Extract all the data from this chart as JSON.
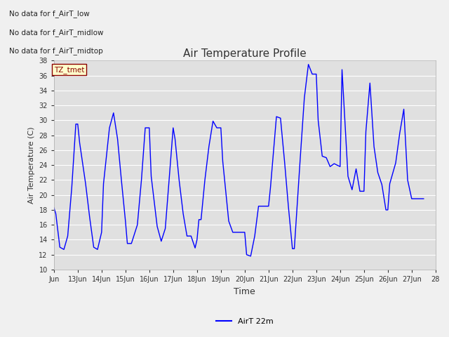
{
  "title": "Air Temperature Profile",
  "xlabel": "Time",
  "ylabel": "Air Temperature (C)",
  "ylim": [
    10,
    38
  ],
  "yticks": [
    10,
    12,
    14,
    16,
    18,
    20,
    22,
    24,
    26,
    28,
    30,
    32,
    34,
    36,
    38
  ],
  "line_color": "blue",
  "line_label": "AirT 22m",
  "fig_bg_color": "#f0f0f0",
  "plot_bg_color": "#e0e0e0",
  "annotations": [
    "No data for f_AirT_low",
    "No data for f_AirT_midlow",
    "No data for f_AirT_midtop"
  ],
  "tz_label": "TZ_tmet",
  "xtick_days": [
    12,
    13,
    14,
    15,
    16,
    17,
    18,
    19,
    20,
    21,
    22,
    23,
    24,
    25,
    26,
    27,
    28
  ],
  "xtick_labels": [
    "Jun",
    "13Jun",
    "14Jun",
    "15Jun",
    "16Jun",
    "17Jun",
    "18Jun",
    "19Jun",
    "20Jun",
    "21Jun",
    "22Jun",
    "23Jun",
    "24Jun",
    "25Jun",
    "26Jun",
    "27Jun",
    "28"
  ],
  "time_data": [
    12.0,
    12.08,
    12.25,
    12.42,
    12.58,
    12.75,
    12.92,
    13.0,
    13.08,
    13.33,
    13.5,
    13.67,
    13.83,
    14.0,
    14.08,
    14.33,
    14.5,
    14.67,
    14.83,
    15.0,
    15.08,
    15.25,
    15.5,
    15.67,
    15.83,
    16.0,
    16.08,
    16.33,
    16.5,
    16.67,
    16.83,
    17.0,
    17.08,
    17.25,
    17.42,
    17.58,
    17.75,
    17.92,
    18.0,
    18.08,
    18.17,
    18.33,
    18.5,
    18.67,
    18.83,
    19.0,
    19.08,
    19.33,
    19.5,
    19.67,
    19.83,
    20.0,
    20.08,
    20.25,
    20.42,
    20.58,
    21.0,
    21.08,
    21.33,
    21.5,
    21.67,
    21.83,
    22.0,
    22.08,
    22.33,
    22.5,
    22.67,
    22.83,
    23.0,
    23.08,
    23.25,
    23.42,
    23.58,
    23.75,
    24.0,
    24.08,
    24.33,
    24.5,
    24.67,
    24.83,
    25.0,
    25.08,
    25.25,
    25.42,
    25.58,
    25.75,
    25.92,
    26.0,
    26.08,
    26.33,
    26.5,
    26.67,
    26.83,
    27.0,
    27.08,
    27.33,
    27.5
  ],
  "temp_data": [
    18.3,
    17.5,
    13.0,
    12.7,
    14.5,
    21.0,
    29.5,
    29.5,
    27.0,
    21.5,
    17.0,
    13.0,
    12.7,
    15.0,
    21.5,
    29.0,
    31.0,
    27.5,
    22.0,
    16.5,
    13.5,
    13.5,
    16.0,
    22.0,
    29.0,
    29.0,
    22.5,
    15.8,
    13.8,
    15.5,
    22.0,
    29.0,
    27.5,
    22.0,
    17.5,
    14.5,
    14.5,
    12.9,
    14.0,
    16.7,
    16.7,
    22.0,
    26.5,
    29.9,
    29.0,
    29.0,
    24.5,
    16.5,
    15.0,
    15.0,
    15.0,
    15.0,
    12.0,
    11.8,
    14.5,
    18.5,
    18.5,
    21.0,
    30.5,
    30.3,
    24.5,
    18.5,
    12.8,
    12.8,
    25.0,
    33.0,
    37.5,
    36.2,
    36.2,
    30.0,
    25.2,
    25.0,
    23.8,
    24.2,
    23.8,
    36.8,
    22.5,
    20.7,
    23.5,
    20.5,
    20.5,
    28.5,
    35.0,
    26.5,
    23.0,
    21.4,
    18.0,
    18.0,
    21.5,
    24.3,
    28.3,
    31.5,
    22.0,
    19.5,
    19.5,
    19.5,
    19.5
  ]
}
